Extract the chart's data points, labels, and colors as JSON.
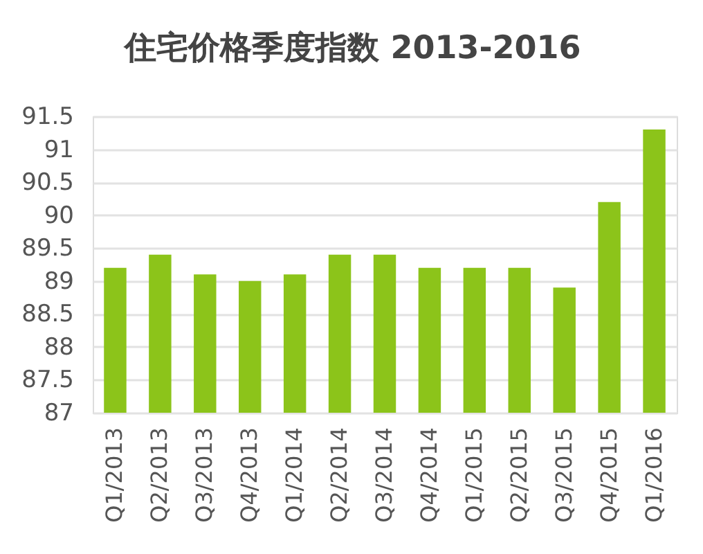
{
  "chart_data": {
    "type": "bar",
    "title": "住宅价格季度指数 2013-2016",
    "categories": [
      "Q1/2013",
      "Q2/2013",
      "Q3/2013",
      "Q4/2013",
      "Q1/2014",
      "Q2/2014",
      "Q3/2014",
      "Q4/2014",
      "Q1/2015",
      "Q2/2015",
      "Q3/2015",
      "Q4/2015",
      "Q1/2016"
    ],
    "values": [
      89.2,
      89.4,
      89.1,
      89.0,
      89.1,
      89.4,
      89.4,
      89.2,
      89.2,
      89.2,
      88.9,
      90.2,
      91.3
    ],
    "color": "#8cc41a",
    "ylim": [
      87,
      91.5
    ],
    "yticks": [
      87,
      87.5,
      88,
      88.5,
      89,
      89.5,
      90,
      90.5,
      91,
      91.5
    ],
    "grid": "y"
  }
}
